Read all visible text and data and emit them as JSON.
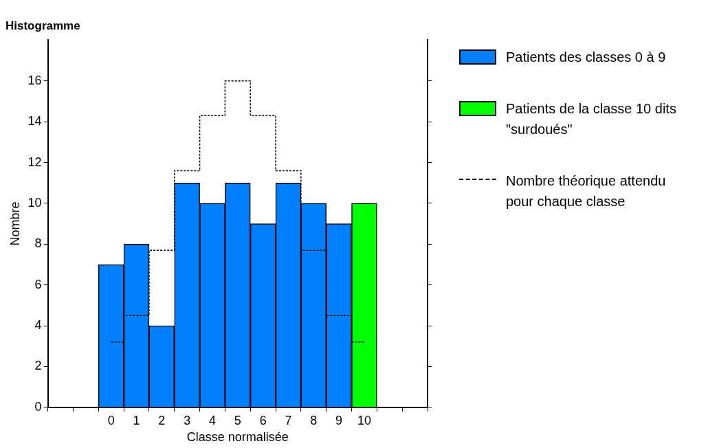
{
  "chart_data": {
    "type": "bar",
    "title": "Histogramme",
    "xlabel": "Classe normalisée",
    "ylabel": "Nombre",
    "categories": [
      null,
      null,
      "0",
      "1",
      "2",
      "3",
      "4",
      "5",
      "6",
      "7",
      "8",
      "9",
      "10",
      null,
      null
    ],
    "series": [
      {
        "name": "Patients des classes 0 à 9",
        "color": "#0080ff",
        "values": [
          null,
          null,
          7,
          8,
          4,
          11,
          10,
          11,
          9,
          11,
          10,
          9,
          null,
          null,
          null
        ]
      },
      {
        "name": "Patients de la classe 10 dits \"surdoués\"",
        "color": "#00ff00",
        "values": [
          null,
          null,
          null,
          null,
          null,
          null,
          null,
          null,
          null,
          null,
          null,
          null,
          10,
          null,
          null
        ]
      },
      {
        "name": "Nombre théorique attendu pour chaque classe",
        "type": "step",
        "color": "#000000",
        "line_style": "dashed",
        "values": [
          null,
          null,
          3.2,
          4.5,
          7.7,
          11.6,
          14.3,
          16,
          14.3,
          11.6,
          7.7,
          4.5,
          3.2,
          null,
          null
        ]
      }
    ],
    "stacked": true,
    "ylim": [
      0,
      18
    ],
    "yticks": [
      0,
      2,
      4,
      6,
      8,
      10,
      12,
      14,
      16
    ],
    "grid": false,
    "legend": "right"
  }
}
